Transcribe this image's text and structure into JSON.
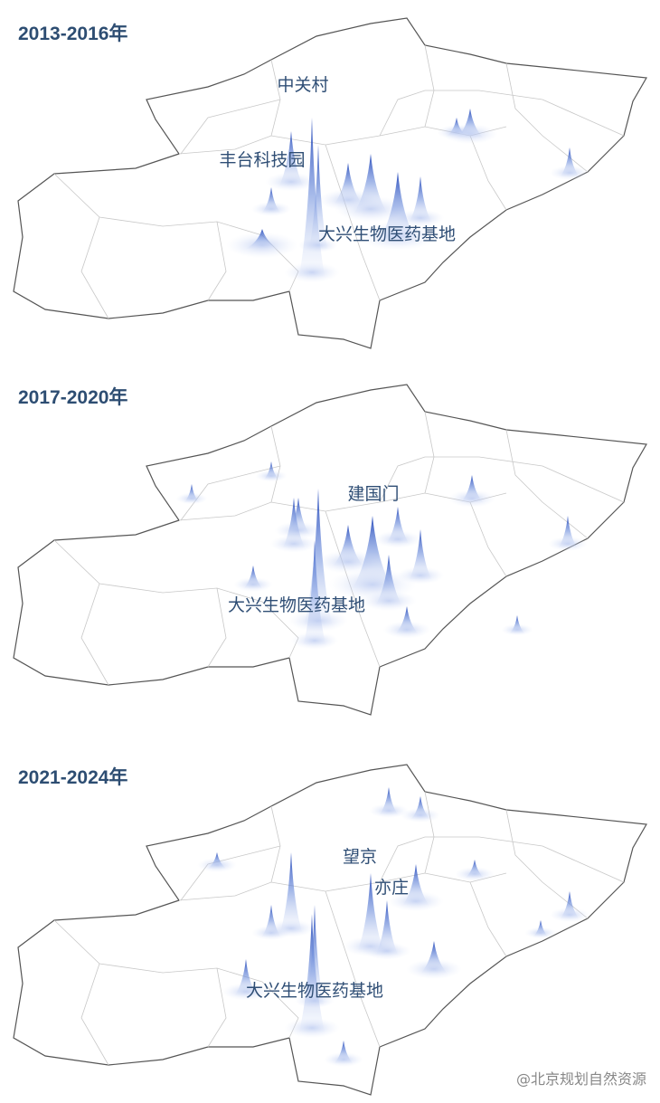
{
  "panels": [
    {
      "title": "2013-2016年",
      "labels": [
        "中关村",
        "丰台科技园",
        "大兴生物医药基地"
      ]
    },
    {
      "title": "2017-2020年",
      "labels": [
        "建国门",
        "大兴生物医药基地"
      ]
    },
    {
      "title": "2021-2024年",
      "labels": [
        "望京",
        "亦庄",
        "大兴生物医药基地"
      ]
    }
  ],
  "watermark": "@北京规划自然资源"
}
